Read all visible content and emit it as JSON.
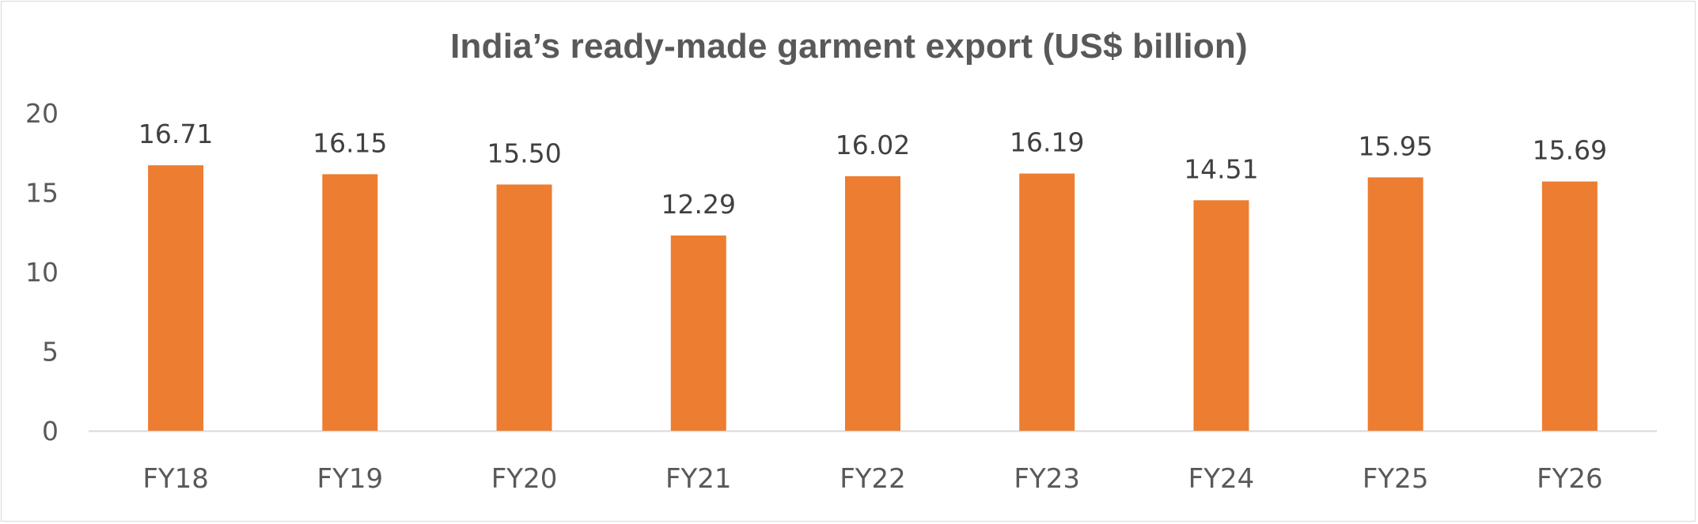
{
  "chart_data": {
    "type": "bar",
    "title": "India’s ready-made garment export (US$ billion)",
    "categories": [
      "FY18",
      "FY19",
      "FY20",
      "FY21",
      "FY22",
      "FY23",
      "FY24",
      "FY25",
      "FY26"
    ],
    "values": [
      16.71,
      16.15,
      15.5,
      12.29,
      16.02,
      16.19,
      14.51,
      15.95,
      15.69
    ],
    "data_labels": [
      "16.71",
      "16.15",
      "15.50",
      "12.29",
      "16.02",
      "16.19",
      "14.51",
      "15.95",
      "15.69"
    ],
    "ylim": [
      0,
      20
    ],
    "yticks": [
      "0",
      "5",
      "10",
      "15",
      "20"
    ],
    "ytick_values": [
      0,
      5,
      10,
      15,
      20
    ],
    "grid": false,
    "legend": "none",
    "bar_color": "#ED7D31",
    "axis_color": "#D9D9D9"
  }
}
